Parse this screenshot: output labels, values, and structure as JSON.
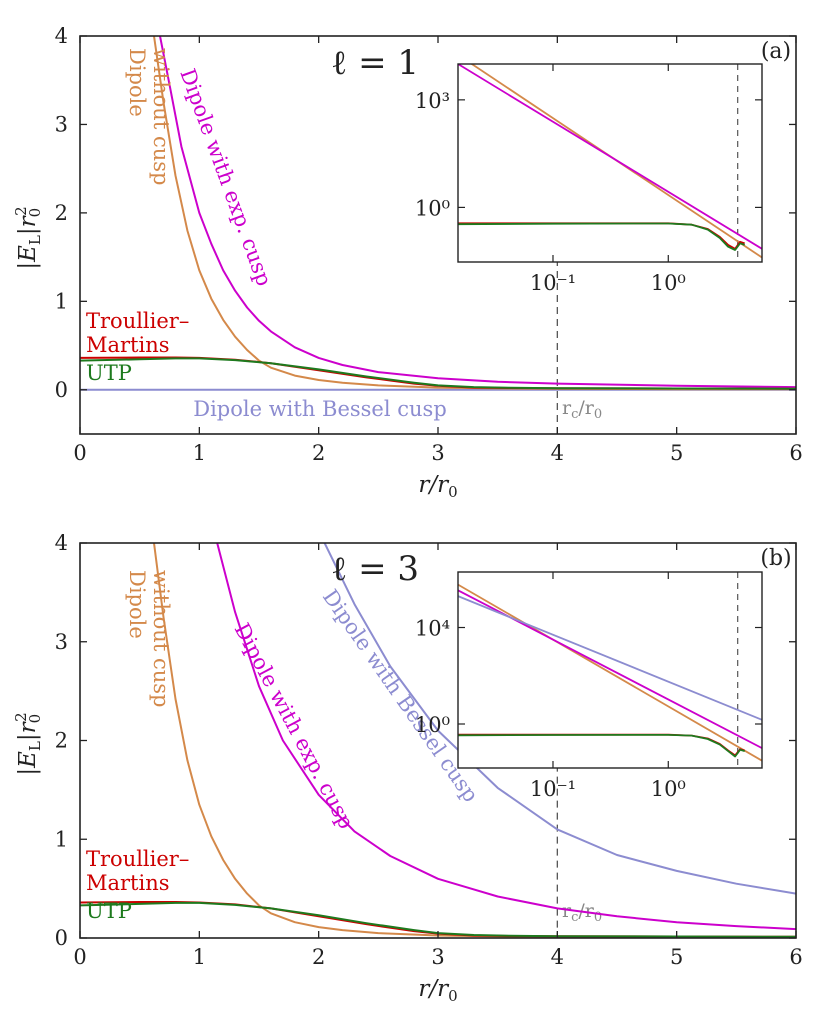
{
  "colors": {
    "dipole_without_cusp": "#d4894a",
    "dipole_exp_cusp": "#cc00cc",
    "dipole_bessel_cusp": "#8c8cd0",
    "troullier_martins": "#cc0000",
    "utp": "#1e7a1e",
    "axis": "#222222",
    "dashed": "#555555"
  },
  "chart_data": [
    {
      "type": "line",
      "panel": "(a)",
      "title": "ℓ = 1",
      "xlabel": "r/r0",
      "ylabel": "|EL| r0²",
      "xlim": [
        0,
        6
      ],
      "ylim": [
        -0.5,
        4
      ],
      "xticks": [
        "0",
        "1",
        "2",
        "3",
        "4",
        "5",
        "6"
      ],
      "yticks": [
        "0",
        "1",
        "2",
        "3",
        "4"
      ],
      "rc": 4,
      "rc_label": "rc/r0",
      "series": [
        {
          "name": "Dipole without cusp",
          "color_key": "dipole_without_cusp",
          "label_lines": [
            "Dipole",
            "without cusp"
          ],
          "x": [
            0.62,
            0.7,
            0.8,
            0.9,
            1.0,
            1.1,
            1.2,
            1.3,
            1.4,
            1.5,
            1.6,
            1.8,
            2.0,
            2.2,
            2.5,
            3.0,
            3.5,
            4.0,
            5.0,
            6.0
          ],
          "y": [
            4.0,
            3.25,
            2.42,
            1.8,
            1.35,
            1.03,
            0.79,
            0.6,
            0.45,
            0.33,
            0.25,
            0.16,
            0.11,
            0.08,
            0.05,
            0.025,
            0.016,
            0.012,
            0.007,
            0.005
          ]
        },
        {
          "name": "Dipole with exp. cusp",
          "color_key": "dipole_exp_cusp",
          "label_lines": [
            "Dipole with exp. cusp"
          ],
          "x": [
            0.67,
            0.75,
            0.85,
            1.0,
            1.1,
            1.2,
            1.3,
            1.4,
            1.5,
            1.6,
            1.8,
            2.0,
            2.2,
            2.5,
            3.0,
            3.5,
            4.0,
            5.0,
            6.0
          ],
          "y": [
            4.0,
            3.45,
            2.75,
            2.0,
            1.65,
            1.35,
            1.12,
            0.93,
            0.78,
            0.66,
            0.48,
            0.36,
            0.28,
            0.2,
            0.13,
            0.09,
            0.07,
            0.045,
            0.03
          ]
        },
        {
          "name": "Dipole with Bessel cusp",
          "color_key": "dipole_bessel_cusp",
          "label_lines": [
            "Dipole with Bessel cusp"
          ],
          "x": [
            0,
            6
          ],
          "y": [
            0,
            0
          ]
        },
        {
          "name": "Troullier–Martins",
          "color_key": "troullier_martins",
          "label_lines": [
            "Troullier–",
            "Martins"
          ],
          "x": [
            0,
            0.5,
            0.8,
            1.0,
            1.3,
            1.6,
            2.0,
            2.4,
            2.8,
            3.0,
            3.3,
            3.6,
            4.0,
            5.0,
            6.0
          ],
          "y": [
            0.36,
            0.365,
            0.365,
            0.36,
            0.34,
            0.3,
            0.22,
            0.14,
            0.07,
            0.045,
            0.025,
            0.02,
            0.018,
            0.015,
            0.012
          ]
        },
        {
          "name": "UTP",
          "color_key": "utp",
          "label_lines": [
            "UTP"
          ],
          "x": [
            0,
            0.5,
            0.8,
            1.0,
            1.3,
            1.6,
            2.0,
            2.4,
            2.8,
            3.0,
            3.3,
            3.6,
            4.0,
            5.0,
            6.0
          ],
          "y": [
            0.33,
            0.345,
            0.355,
            0.355,
            0.335,
            0.3,
            0.23,
            0.15,
            0.08,
            0.05,
            0.03,
            0.022,
            0.018,
            0.015,
            0.012
          ]
        }
      ],
      "inset": {
        "xscale": "log",
        "yscale": "log",
        "xlim": [
          0.015,
          6.5
        ],
        "ylim": [
          0.03,
          10000
        ],
        "xticks": [
          "10⁻¹",
          "10⁰"
        ],
        "yticks": [
          "10⁰",
          "10³"
        ],
        "rc": 4,
        "series": [
          {
            "color_key": "dipole_without_cusp",
            "x": [
              0.015,
              6.5
            ],
            "y": [
              18000,
              0.04
            ]
          },
          {
            "color_key": "dipole_exp_cusp",
            "x": [
              0.015,
              6.5
            ],
            "y": [
              10000,
              0.07
            ]
          },
          {
            "color_key": "troullier_martins",
            "x": [
              0.015,
              0.1,
              0.5,
              1.0,
              1.6,
              2.2,
              2.8,
              3.3,
              3.8,
              4.2,
              4.6
            ],
            "y": [
              0.36,
              0.36,
              0.36,
              0.36,
              0.33,
              0.25,
              0.15,
              0.09,
              0.07,
              0.11,
              0.1
            ]
          },
          {
            "color_key": "utp",
            "x": [
              0.015,
              0.1,
              0.5,
              1.0,
              1.6,
              2.2,
              2.8,
              3.3,
              3.8,
              4.2,
              4.6
            ],
            "y": [
              0.34,
              0.35,
              0.355,
              0.355,
              0.33,
              0.24,
              0.14,
              0.08,
              0.065,
              0.1,
              0.09
            ]
          }
        ]
      }
    },
    {
      "type": "line",
      "panel": "(b)",
      "title": "ℓ = 3",
      "xlabel": "r/r0",
      "ylabel": "|EL| r0²",
      "xlim": [
        0,
        6
      ],
      "ylim": [
        0,
        4
      ],
      "xticks": [
        "0",
        "1",
        "2",
        "3",
        "4",
        "5",
        "6"
      ],
      "yticks": [
        "0",
        "1",
        "2",
        "3",
        "4"
      ],
      "rc": 4,
      "rc_label": "rc/r0",
      "series": [
        {
          "name": "Dipole without cusp",
          "color_key": "dipole_without_cusp",
          "label_lines": [
            "Dipole",
            "without cusp"
          ],
          "x": [
            0.62,
            0.7,
            0.8,
            0.9,
            1.0,
            1.1,
            1.2,
            1.3,
            1.4,
            1.5,
            1.6,
            1.8,
            2.0,
            2.2,
            2.5,
            3.0,
            3.5,
            4.0,
            5.0,
            6.0
          ],
          "y": [
            4.0,
            3.25,
            2.42,
            1.8,
            1.35,
            1.03,
            0.79,
            0.6,
            0.45,
            0.33,
            0.25,
            0.16,
            0.11,
            0.08,
            0.05,
            0.025,
            0.016,
            0.012,
            0.007,
            0.005
          ]
        },
        {
          "name": "Dipole with exp. cusp",
          "color_key": "dipole_exp_cusp",
          "label_lines": [
            "Dipole with exp. cusp"
          ],
          "x": [
            1.15,
            1.3,
            1.5,
            1.7,
            2.0,
            2.3,
            2.6,
            3.0,
            3.5,
            4.0,
            4.5,
            5.0,
            5.5,
            6.0
          ],
          "y": [
            4.0,
            3.3,
            2.55,
            2.0,
            1.45,
            1.08,
            0.83,
            0.6,
            0.42,
            0.3,
            0.22,
            0.16,
            0.12,
            0.09
          ]
        },
        {
          "name": "Dipole with Bessel cusp",
          "color_key": "dipole_bessel_cusp",
          "label_lines": [
            "Dipole with Bessel cusp"
          ],
          "x": [
            2.05,
            2.3,
            2.6,
            3.0,
            3.5,
            4.0,
            4.5,
            5.0,
            5.5,
            6.0
          ],
          "y": [
            4.0,
            3.38,
            2.75,
            2.1,
            1.52,
            1.1,
            0.84,
            0.68,
            0.55,
            0.45
          ]
        },
        {
          "name": "Troullier–Martins",
          "color_key": "troullier_martins",
          "label_lines": [
            "Troullier–",
            "Martins"
          ],
          "x": [
            0,
            0.5,
            0.8,
            1.0,
            1.3,
            1.6,
            2.0,
            2.4,
            2.8,
            3.0,
            3.3,
            3.6,
            4.0,
            5.0,
            6.0
          ],
          "y": [
            0.36,
            0.365,
            0.365,
            0.36,
            0.34,
            0.3,
            0.22,
            0.14,
            0.07,
            0.045,
            0.025,
            0.02,
            0.018,
            0.015,
            0.012
          ]
        },
        {
          "name": "UTP",
          "color_key": "utp",
          "label_lines": [
            "UTP"
          ],
          "x": [
            0,
            0.5,
            0.8,
            1.0,
            1.3,
            1.6,
            2.0,
            2.4,
            2.8,
            3.0,
            3.3,
            3.6,
            4.0,
            5.0,
            6.0
          ],
          "y": [
            0.33,
            0.345,
            0.355,
            0.355,
            0.335,
            0.3,
            0.23,
            0.15,
            0.08,
            0.05,
            0.03,
            0.022,
            0.018,
            0.015,
            0.012
          ]
        }
      ],
      "inset": {
        "xscale": "log",
        "yscale": "log",
        "xlim": [
          0.015,
          6.5
        ],
        "ylim": [
          0.015,
          2000000
        ],
        "xticks": [
          "10⁻¹",
          "10⁰"
        ],
        "yticks": [
          "10⁰",
          "10⁴"
        ],
        "rc": 4,
        "series": [
          {
            "color_key": "dipole_without_cusp",
            "x": [
              0.015,
              6.5
            ],
            "y": [
              600000,
              0.03
            ]
          },
          {
            "color_key": "dipole_exp_cusp",
            "x": [
              0.015,
              6.5
            ],
            "y": [
              350000,
              0.1
            ]
          },
          {
            "color_key": "dipole_bessel_cusp",
            "x": [
              0.015,
              6.5
            ],
            "y": [
              200000,
              1.5
            ]
          },
          {
            "color_key": "troullier_martins",
            "x": [
              0.015,
              0.1,
              0.5,
              1.0,
              1.6,
              2.2,
              2.8,
              3.3,
              3.8,
              4.2,
              4.6
            ],
            "y": [
              0.36,
              0.36,
              0.36,
              0.36,
              0.33,
              0.25,
              0.15,
              0.08,
              0.05,
              0.09,
              0.08
            ]
          },
          {
            "color_key": "utp",
            "x": [
              0.015,
              0.1,
              0.5,
              1.0,
              1.6,
              2.2,
              2.8,
              3.3,
              3.8,
              4.2,
              4.6
            ],
            "y": [
              0.34,
              0.35,
              0.355,
              0.355,
              0.33,
              0.24,
              0.14,
              0.075,
              0.045,
              0.085,
              0.075
            ]
          }
        ]
      }
    }
  ]
}
